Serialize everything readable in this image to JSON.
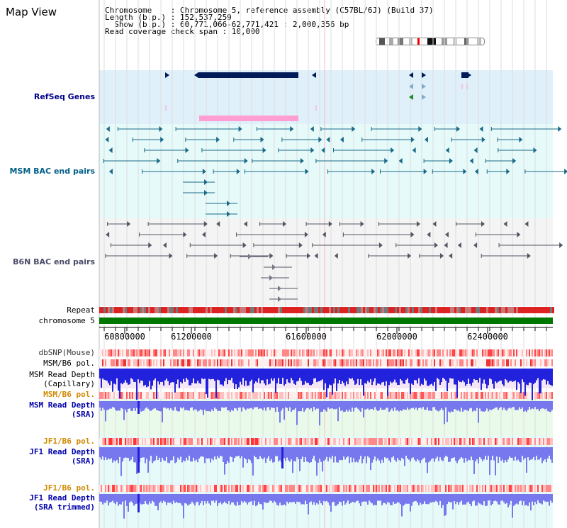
{
  "header": {
    "title": "Map View",
    "lines": [
      "Chromosome    : Chromosome 5, reference assembly (C57BL/6J) (Build 37)",
      "Length (b.p.) : 152,537,259",
      "  Show (b.p.) : 60,771,066-62,771,421 : 2,000,356 bp",
      "Read coverage check span : 10,000"
    ]
  },
  "tracks": {
    "refseq": "RefSeq Genes",
    "msm_bac": "MSM BAC end pairs",
    "b6n_bac": "B6N BAC end pairs",
    "repeat": "Repeat",
    "chromosome": "chromosome 5",
    "dbsnp": "dbSNP(Mouse)",
    "msm_b6_pol_1": "MSM/B6 pol.",
    "msm_depth_cap_1": "MSM Read Depth",
    "msm_depth_cap_2": "(Capillary)",
    "msm_b6_pol_2": "MSM/B6 pol.",
    "msm_depth_sra_1": "MSM Read Depth",
    "msm_depth_sra_2": "(SRA)",
    "jf1_b6_pol_1": "JF1/B6 pol.",
    "jf1_depth_sra_1": "JF1 Read Depth",
    "jf1_depth_sra_2": "(SRA)",
    "jf1_b6_pol_2": "JF1/B6 pol.",
    "jf1_depth_trim_1": "JF1 Read Depth",
    "jf1_depth_trim_2": "(SRA trimmed)"
  },
  "axis": {
    "ticks": [
      "60800000",
      "61200000",
      "61600000",
      "62000000",
      "62400000"
    ]
  },
  "colors": {
    "refseq_bg": "#e0f0fa",
    "msm_bg": "#e6fafa",
    "b6n_bg": "#f4f4f4",
    "gene": "#001a5a",
    "highlight": "#ff9ed2",
    "chromosome": "#007700",
    "depth_blue": "#2222dd",
    "depth_light": "#7777ee"
  }
}
